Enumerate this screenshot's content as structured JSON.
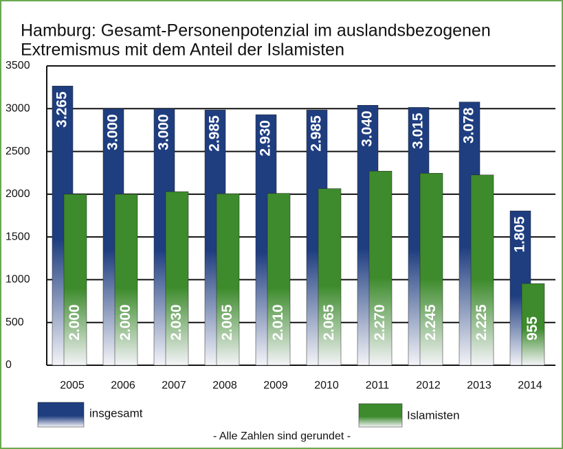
{
  "chart_data": {
    "type": "bar",
    "title": [
      "Hamburg: Gesamt-Personenpotenzial im auslandsbezogenen",
      "Extremismus mit dem Anteil der Islamisten"
    ],
    "categories": [
      "2005",
      "2006",
      "2007",
      "2008",
      "2009",
      "2010",
      "2011",
      "2012",
      "2013",
      "2014"
    ],
    "series": [
      {
        "name": "insgesamt",
        "color": "#1f3e80",
        "values": [
          3265,
          3000,
          3000,
          2985,
          2930,
          2985,
          3040,
          3015,
          3078,
          1805
        ],
        "value_labels": [
          "3.265",
          "3.000",
          "3.000",
          "2.985",
          "2.930",
          "2.985",
          "3.040",
          "3.015",
          "3.078",
          "1.805"
        ]
      },
      {
        "name": "Islamisten",
        "color": "#3d8b2c",
        "values": [
          2000,
          2000,
          2030,
          2005,
          2010,
          2065,
          2270,
          2245,
          2225,
          955
        ],
        "value_labels": [
          "2.000",
          "2.000",
          "2.030",
          "2.005",
          "2.010",
          "2.065",
          "2.270",
          "2.245",
          "2.225",
          "955"
        ]
      }
    ],
    "ylim": [
      0,
      3500
    ],
    "yticks": [
      0,
      500,
      1000,
      1500,
      2000,
      2500,
      3000,
      3500
    ],
    "grid": true,
    "note": "- Alle Zahlen sind gerundet -"
  }
}
